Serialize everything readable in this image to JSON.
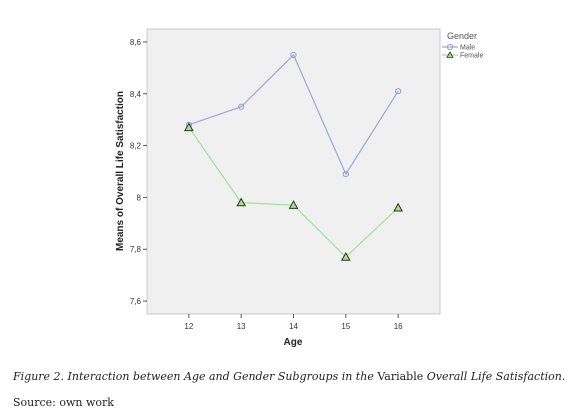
{
  "chart_data": {
    "type": "line",
    "x": [
      12,
      13,
      14,
      15,
      16
    ],
    "xlabel": "Age",
    "ylabel": "Means of Overall Life Satisfaction",
    "ylim": [
      7.55,
      8.65
    ],
    "yticks": [
      7.6,
      7.8,
      8.0,
      8.2,
      8.4,
      8.6
    ],
    "ytick_labels": [
      "7,6",
      "7,8",
      "8",
      "8,2",
      "8,4",
      "8,6"
    ],
    "legend_title": "Gender",
    "legend_position": "top-right",
    "grid": false,
    "series": [
      {
        "name": "Male",
        "marker": "circle",
        "color": "#9aa7dc",
        "values": [
          8.28,
          8.35,
          8.55,
          8.09,
          8.41
        ]
      },
      {
        "name": "Female",
        "marker": "triangle",
        "color": "#9be39b",
        "values": [
          8.27,
          7.98,
          7.97,
          7.77,
          7.96
        ]
      }
    ]
  },
  "caption": {
    "italic_part": "Figure 2. Interaction between Age and Gender Subgroups in the ",
    "upright_part": "Variable ",
    "italic_tail": "Overall Life Satisfaction."
  },
  "source": "Source: own work"
}
